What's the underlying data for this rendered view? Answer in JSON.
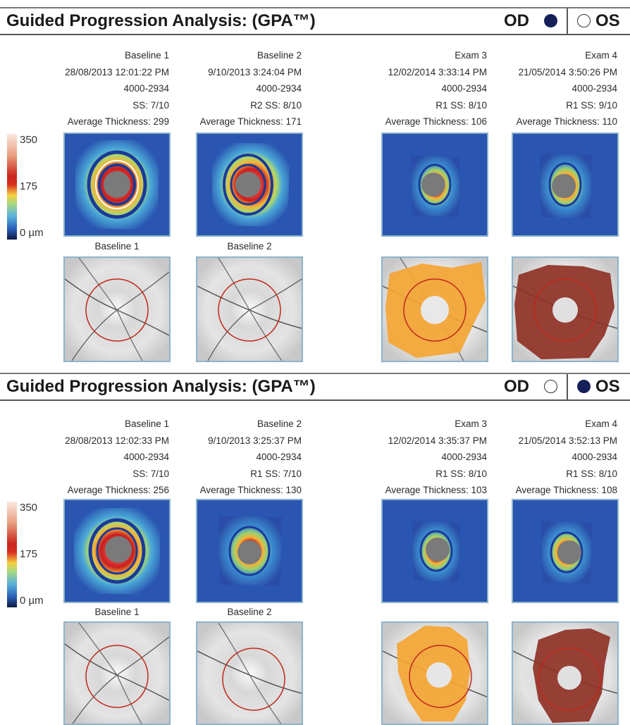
{
  "colors": {
    "od_filled": "#15205a",
    "os_filled": "#15205a",
    "border": "#8cb4cc",
    "fundus_circle": "#c02818",
    "orange_overlay": "#f4a533",
    "brown_overlay": "#8d2e22"
  },
  "scale": {
    "top": "350",
    "mid": "175",
    "bottom": "0 µm"
  },
  "sections": [
    {
      "title": "Guided Progression Analysis: (GPA™)",
      "od": "OD",
      "os": "OS",
      "selected_eye": "OD",
      "exams": [
        {
          "label": "Baseline 1",
          "date": "28/08/2013 12:01:22 PM",
          "serial": "4000-2934",
          "quality": "SS: 7/10",
          "avg": "Average Thickness: 299",
          "fundus_label": "Baseline 1"
        },
        {
          "label": "Baseline 2",
          "date": "9/10/2013 3:24:04 PM",
          "serial": "4000-2934",
          "quality": "R2  SS: 8/10",
          "avg": "Average Thickness: 171",
          "fundus_label": "Baseline 2"
        },
        {
          "label": "Exam 3",
          "date": "12/02/2014 3:33:14 PM",
          "serial": "4000-2934",
          "quality": "R1  SS: 8/10",
          "avg": "Average Thickness: 106",
          "fundus_label": ""
        },
        {
          "label": "Exam 4",
          "date": "21/05/2014 3:50:26 PM",
          "serial": "4000-2934",
          "quality": "R1  SS: 9/10",
          "avg": "Average Thickness: 110",
          "fundus_label": ""
        }
      ]
    },
    {
      "title": "Guided Progression Analysis: (GPA™)",
      "od": "OD",
      "os": "OS",
      "selected_eye": "OS",
      "exams": [
        {
          "label": "Baseline 1",
          "date": "28/08/2013 12:02:33 PM",
          "serial": "4000-2934",
          "quality": "SS: 7/10",
          "avg": "Average Thickness: 256",
          "fundus_label": "Baseline 1"
        },
        {
          "label": "Baseline 2",
          "date": "9/10/2013 3:25:37 PM",
          "serial": "4000-2934",
          "quality": "R1  SS: 7/10",
          "avg": "Average Thickness: 130",
          "fundus_label": "Baseline 2"
        },
        {
          "label": "Exam 3",
          "date": "12/02/2014 3:35:37 PM",
          "serial": "4000-2934",
          "quality": "R1  SS: 8/10",
          "avg": "Average Thickness: 103",
          "fundus_label": ""
        },
        {
          "label": "Exam 4",
          "date": "21/05/2014 3:52:13 PM",
          "serial": "4000-2934",
          "quality": "R1  SS: 8/10",
          "avg": "Average Thickness: 108",
          "fundus_label": ""
        }
      ]
    }
  ]
}
